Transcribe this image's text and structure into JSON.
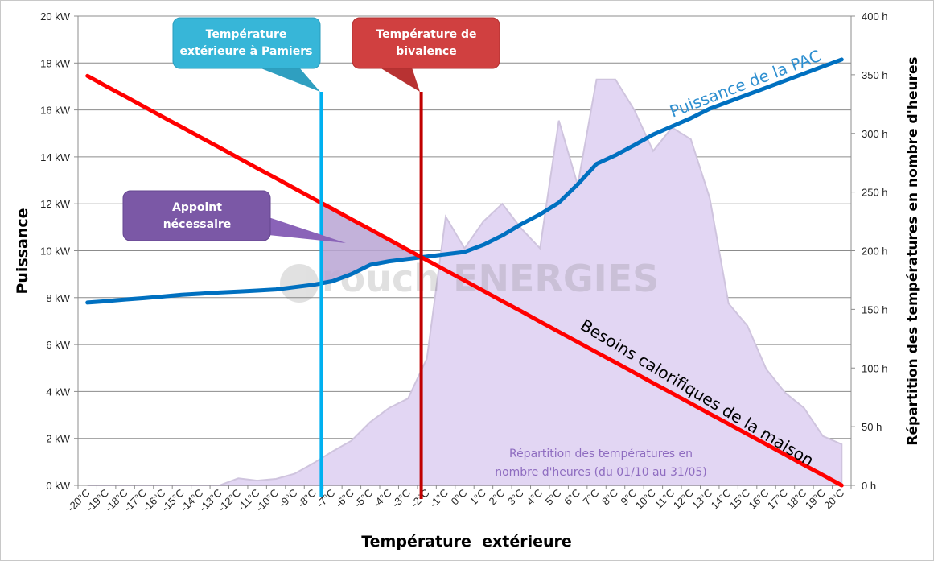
{
  "chart_data": {
    "type": "line",
    "xlabel": "Température  extérieure",
    "ylabel": "Puissance",
    "y2label": "Répartition des températures en nombre d'heures",
    "ylim": [
      0,
      20
    ],
    "y2lim": [
      0,
      400
    ],
    "yticks": [
      "0 kW",
      "2 kW",
      "4 kW",
      "6 kW",
      "8 kW",
      "10 kW",
      "12 kW",
      "14 kW",
      "16 kW",
      "18 kW",
      "20 kW"
    ],
    "y2ticks": [
      "0 h",
      "50 h",
      "100 h",
      "150 h",
      "200 h",
      "250 h",
      "300 h",
      "350 h",
      "400 h"
    ],
    "grid": true,
    "categories": [
      "-20°C",
      "-19°C",
      "-18°C",
      "-17°C",
      "-16°C",
      "-15°C",
      "-14°C",
      "-13°C",
      "-12°C",
      "-11°C",
      "-10°C",
      "-9°C",
      "-8°C",
      "-7°C",
      "-6°C",
      "-5°C",
      "-4°C",
      "-3°C",
      "-2°C",
      "-1°C",
      "0°C",
      "1°C",
      "2°C",
      "3°C",
      "4°C",
      "5°C",
      "6°C",
      "7°C",
      "8°C",
      "9°C",
      "10°C",
      "11°C",
      "12°C",
      "13°C",
      "14°C",
      "15°C",
      "16°C",
      "17°C",
      "18°C",
      "19°C",
      "20°C"
    ],
    "series": [
      {
        "name": "Puissance de la PAC",
        "axis": "left",
        "kind": "line",
        "color": "#0070c0",
        "values": [
          7.79,
          7.85,
          7.92,
          7.98,
          8.05,
          8.12,
          8.17,
          8.22,
          8.26,
          8.3,
          8.35,
          8.45,
          8.55,
          8.7,
          9.0,
          9.4,
          9.55,
          9.65,
          9.75,
          9.85,
          9.95,
          10.25,
          10.65,
          11.13,
          11.55,
          12.05,
          12.83,
          13.7,
          14.07,
          14.5,
          14.95,
          15.3,
          15.65,
          16.05,
          16.35,
          16.65,
          16.95,
          17.25,
          17.55,
          17.85,
          18.15
        ]
      },
      {
        "name": "Besoins calorifiques de la maison",
        "axis": "left",
        "kind": "line",
        "color": "#ff0000",
        "values": [
          17.45,
          17.01,
          16.58,
          16.14,
          15.7,
          15.27,
          14.83,
          14.4,
          13.96,
          13.52,
          13.09,
          12.65,
          12.21,
          11.78,
          11.34,
          10.91,
          10.47,
          10.03,
          9.6,
          9.16,
          8.73,
          8.29,
          7.85,
          7.42,
          6.98,
          6.54,
          6.11,
          5.67,
          5.24,
          4.8,
          4.36,
          3.93,
          3.49,
          3.05,
          2.62,
          2.18,
          1.75,
          1.31,
          0.87,
          0.44,
          0
        ]
      },
      {
        "name": "Répartition des températures en nombre d'heures (du 01/10 au 31/05)",
        "axis": "right",
        "kind": "area",
        "color": "#e2d6f3",
        "values": [
          0,
          0,
          0,
          0,
          0,
          0,
          0,
          0,
          6,
          4,
          5.5,
          10,
          19,
          29,
          38,
          54,
          66,
          74,
          108,
          229,
          202,
          225,
          240,
          219,
          202,
          311,
          256,
          346,
          346,
          320,
          285,
          305,
          295,
          245,
          155,
          136,
          99,
          79,
          66,
          42,
          35
        ]
      }
    ],
    "annotations": {
      "pamiers": {
        "text_lines": [
          "Température",
          "extérieure à Pamiers"
        ],
        "x_value": -7.6,
        "color": "#00b0f0",
        "box_color": "#37b6d8"
      },
      "bivalence": {
        "text_lines": [
          "Température de",
          "bivalence"
        ],
        "x_value": -2.3,
        "color": "#c00000",
        "box_color": "#d04040"
      },
      "appoint": {
        "text_lines": [
          "Appoint",
          "nécessaire"
        ],
        "box_color": "#7b58a6",
        "fill_color": "#b9a4d4"
      },
      "pac_label": "Puissance de la PAC",
      "besoins_label": "Besoins calorifiques de la maison",
      "area_label_lines": [
        "Répartition des températures en",
        "nombre d'heures (du 01/10 au 31/05)"
      ]
    },
    "watermark": "rouch ENERGIES"
  }
}
